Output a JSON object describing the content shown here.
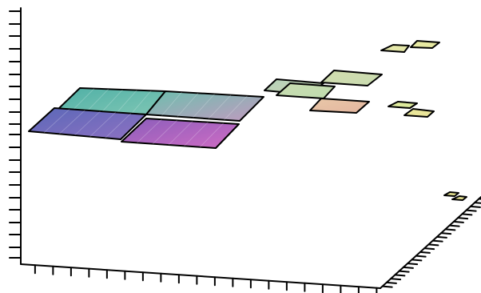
{
  "chart_data": {
    "type": "heatmap",
    "view": "3d-quadtree-tiles",
    "title": "",
    "xlabel": "",
    "ylabel": "",
    "zlabel": "",
    "tick_labels_shown": false,
    "grid": false,
    "legend": "none",
    "colors": {
      "axis": "#000000",
      "background": "#ffffff"
    },
    "tiles": [
      {
        "id": "level1-back-left",
        "level": 1,
        "color_a": "#4fb0a6",
        "color_b": "#7fc6b4"
      },
      {
        "id": "level1-back-right",
        "level": 1,
        "color_a": "#6cbfad",
        "color_b": "#c29ac0"
      },
      {
        "id": "level1-front-left",
        "level": 1,
        "color_a": "#5a68b8",
        "color_b": "#8e71c2"
      },
      {
        "id": "level1-front-right",
        "level": 1,
        "color_a": "#8a5ebb",
        "color_b": "#cf6cc4"
      },
      {
        "id": "level2-a",
        "level": 2,
        "color_a": "#b5d1b9",
        "color_b": "#c9d4b4"
      },
      {
        "id": "level2-b",
        "level": 2,
        "color_a": "#d3ddae",
        "color_b": "#c9dcb1"
      },
      {
        "id": "level2-c",
        "level": 2,
        "color_a": "#c9dcb1",
        "color_b": "#bfdcae"
      },
      {
        "id": "level2-d",
        "level": 2,
        "color_a": "#e9c8a8",
        "color_b": "#e3b59f"
      },
      {
        "id": "level3-a",
        "level": 3,
        "color_a": "#e6e8ab",
        "color_b": "#e3e6a6"
      },
      {
        "id": "level3-b",
        "level": 3,
        "color_a": "#e8eaa4",
        "color_b": "#e6e8a0"
      },
      {
        "id": "level3-c",
        "level": 3,
        "color_a": "#e2ec9e",
        "color_b": "#dbe99b"
      },
      {
        "id": "level3-d",
        "level": 3,
        "color_a": "#ecea9c",
        "color_b": "#e8e298"
      },
      {
        "id": "level4-a",
        "level": 4,
        "color_a": "#eeea96",
        "color_b": "#e9e58f"
      },
      {
        "id": "level4-b",
        "level": 4,
        "color_a": "#eeea96",
        "color_b": "#e9e58f"
      }
    ]
  }
}
